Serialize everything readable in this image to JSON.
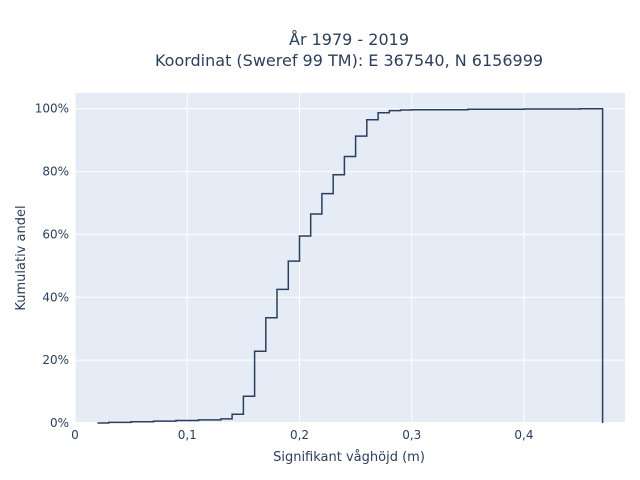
{
  "chart_data": {
    "type": "line",
    "line_shape": "step",
    "title_lines": [
      "År 1979 - 2019",
      "Koordinat (Sweref 99 TM): E 367540, N 6156999"
    ],
    "xlabel": "Signifikant våghöjd (m)",
    "ylabel": "Kumulativ andel",
    "xlim": [
      0,
      0.49
    ],
    "ylim": [
      0,
      1.05
    ],
    "x_ticks": [
      0,
      0.1,
      0.2,
      0.3,
      0.4
    ],
    "x_tick_labels": [
      "0",
      "0,1",
      "0,2",
      "0,3",
      "0,4"
    ],
    "y_ticks": [
      0,
      0.2,
      0.4,
      0.6,
      0.8,
      1.0
    ],
    "y_tick_labels": [
      "0%",
      "20%",
      "40%",
      "60%",
      "80%",
      "100%"
    ],
    "grid": true,
    "series": [
      {
        "color": "#2a3f5f",
        "x": [
          0.02,
          0.03,
          0.05,
          0.07,
          0.09,
          0.11,
          0.13,
          0.14,
          0.15,
          0.16,
          0.17,
          0.18,
          0.19,
          0.2,
          0.21,
          0.22,
          0.23,
          0.24,
          0.25,
          0.26,
          0.27,
          0.28,
          0.29,
          0.3,
          0.35,
          0.4,
          0.45,
          0.47
        ],
        "y": [
          0.0,
          0.002,
          0.004,
          0.006,
          0.008,
          0.01,
          0.013,
          0.028,
          0.085,
          0.228,
          0.335,
          0.425,
          0.515,
          0.595,
          0.665,
          0.73,
          0.79,
          0.848,
          0.913,
          0.965,
          0.987,
          0.994,
          0.996,
          0.997,
          0.998,
          0.999,
          1.0,
          0.0
        ]
      }
    ]
  }
}
